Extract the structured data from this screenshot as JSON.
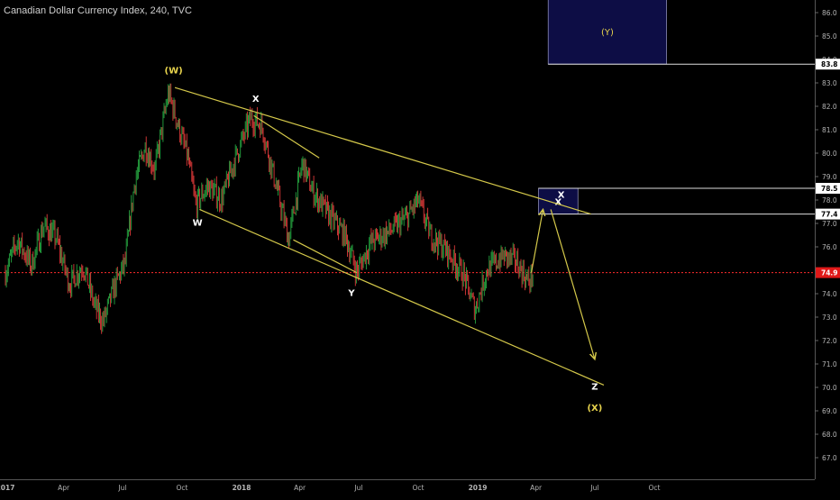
{
  "title": "Canadian Dollar Currency Index, 240, TVC",
  "colors": {
    "background": "#000000",
    "up": "#26a641",
    "down": "#e03a3a",
    "trendline": "#d4c84a",
    "wave_label": "#ffffff",
    "wave_label_major": "#e8d44d",
    "current_price_line": "#ff2b2b",
    "box_fill": "#0d0d45",
    "axis_text": "#b4b4b4"
  },
  "chart_data": {
    "type": "candlestick",
    "x_axis": {
      "labels": [
        "2017",
        "Apr",
        "Jul",
        "Oct",
        "2018",
        "Apr",
        "Jul",
        "Oct",
        "2019",
        "Apr",
        "Jul",
        "Oct"
      ]
    },
    "y_axis": {
      "range": [
        66.5,
        86.5
      ],
      "ticks": [
        "86.0",
        "85.0",
        "84.0",
        "83.0",
        "82.0",
        "81.0",
        "80.0",
        "79.0",
        "78.0",
        "77.0",
        "76.0",
        "75.0",
        "74.0",
        "73.0",
        "72.0",
        "71.0",
        "70.0",
        "69.0",
        "68.0",
        "67.0"
      ],
      "highlighted_levels": [
        {
          "label": "83.8",
          "value": 83.8,
          "style": "white"
        },
        {
          "label": "78.5",
          "value": 78.5,
          "style": "white"
        },
        {
          "label": "77.4",
          "value": 77.4,
          "style": "white"
        },
        {
          "label": "74.9",
          "value": 74.9,
          "style": "red"
        }
      ]
    },
    "price_path": [
      [
        "2017-01-01",
        74.9
      ],
      [
        "2017-01-20",
        76.3
      ],
      [
        "2017-02-10",
        75.2
      ],
      [
        "2017-03-01",
        76.9
      ],
      [
        "2017-03-20",
        76.4
      ],
      [
        "2017-04-10",
        74.4
      ],
      [
        "2017-05-01",
        75.2
      ],
      [
        "2017-05-20",
        73.4
      ],
      [
        "2017-06-01",
        72.8
      ],
      [
        "2017-06-20",
        74.4
      ],
      [
        "2017-07-05",
        75.3
      ],
      [
        "2017-07-20",
        78.8
      ],
      [
        "2017-08-05",
        80.3
      ],
      [
        "2017-08-20",
        79.3
      ],
      [
        "2017-09-10",
        82.6
      ],
      [
        "2017-09-25",
        81.2
      ],
      [
        "2017-10-10",
        79.8
      ],
      [
        "2017-10-22",
        77.8
      ],
      [
        "2017-11-10",
        78.6
      ],
      [
        "2017-12-01",
        78.0
      ],
      [
        "2017-12-20",
        79.6
      ],
      [
        "2018-01-15",
        81.5
      ],
      [
        "2018-02-01",
        81.2
      ],
      [
        "2018-02-20",
        79.0
      ],
      [
        "2018-03-15",
        76.3
      ],
      [
        "2018-04-05",
        79.6
      ],
      [
        "2018-04-20",
        78.4
      ],
      [
        "2018-05-15",
        77.4
      ],
      [
        "2018-06-10",
        76.5
      ],
      [
        "2018-06-28",
        74.9
      ],
      [
        "2018-07-20",
        76.2
      ],
      [
        "2018-08-20",
        76.7
      ],
      [
        "2018-09-15",
        77.3
      ],
      [
        "2018-10-01",
        78.0
      ],
      [
        "2018-10-20",
        76.5
      ],
      [
        "2018-11-15",
        75.8
      ],
      [
        "2018-12-10",
        74.8
      ],
      [
        "2018-12-28",
        73.3
      ],
      [
        "2019-01-15",
        75.0
      ],
      [
        "2019-02-10",
        75.6
      ],
      [
        "2019-03-01",
        75.4
      ],
      [
        "2019-03-20",
        74.5
      ],
      [
        "2019-03-28",
        74.9
      ]
    ],
    "trendlines": [
      {
        "from": [
          "2017-09-20",
          82.8
        ],
        "to": [
          "2019-06-25",
          77.4
        ]
      },
      {
        "from": [
          "2018-01-20",
          81.6
        ],
        "to": [
          "2018-05-01",
          79.8
        ]
      },
      {
        "from": [
          "2017-10-28",
          77.6
        ],
        "to": [
          "2019-07-15",
          70.1
        ]
      },
      {
        "from": [
          "2018-03-22",
          76.3
        ],
        "to": [
          "2018-06-28",
          74.9
        ]
      }
    ],
    "projection": [
      [
        "2019-03-25",
        74.9
      ],
      [
        "2019-04-12",
        77.6
      ],
      [
        "2019-04-24",
        77.6
      ],
      [
        "2019-07-01",
        71.2
      ]
    ],
    "boxes": [
      {
        "label": "(Y)",
        "x_from": "2019-04-20",
        "x_to": "2019-10-20",
        "y_from": 83.8,
        "y_to": 86.6
      },
      {
        "label": "X",
        "x_from": "2019-04-05",
        "x_to": "2019-06-05",
        "y_from": 77.4,
        "y_to": 78.5
      }
    ],
    "annotations": [
      {
        "text": "(W)",
        "at": [
          "2017-09-18",
          83.4
        ],
        "style": "major"
      },
      {
        "text": "X",
        "at": [
          "2018-01-23",
          82.2
        ],
        "style": "minor"
      },
      {
        "text": "W",
        "at": [
          "2017-10-25",
          76.9
        ],
        "style": "minor"
      },
      {
        "text": "Y",
        "at": [
          "2018-06-20",
          73.9
        ],
        "style": "minor"
      },
      {
        "text": "X",
        "at": [
          "2019-05-10",
          78.1
        ],
        "style": "minor"
      },
      {
        "text": "Z",
        "at": [
          "2019-07-01",
          69.9
        ],
        "style": "minor"
      },
      {
        "text": "(X)",
        "at": [
          "2019-07-01",
          69.0
        ],
        "style": "major"
      }
    ]
  }
}
